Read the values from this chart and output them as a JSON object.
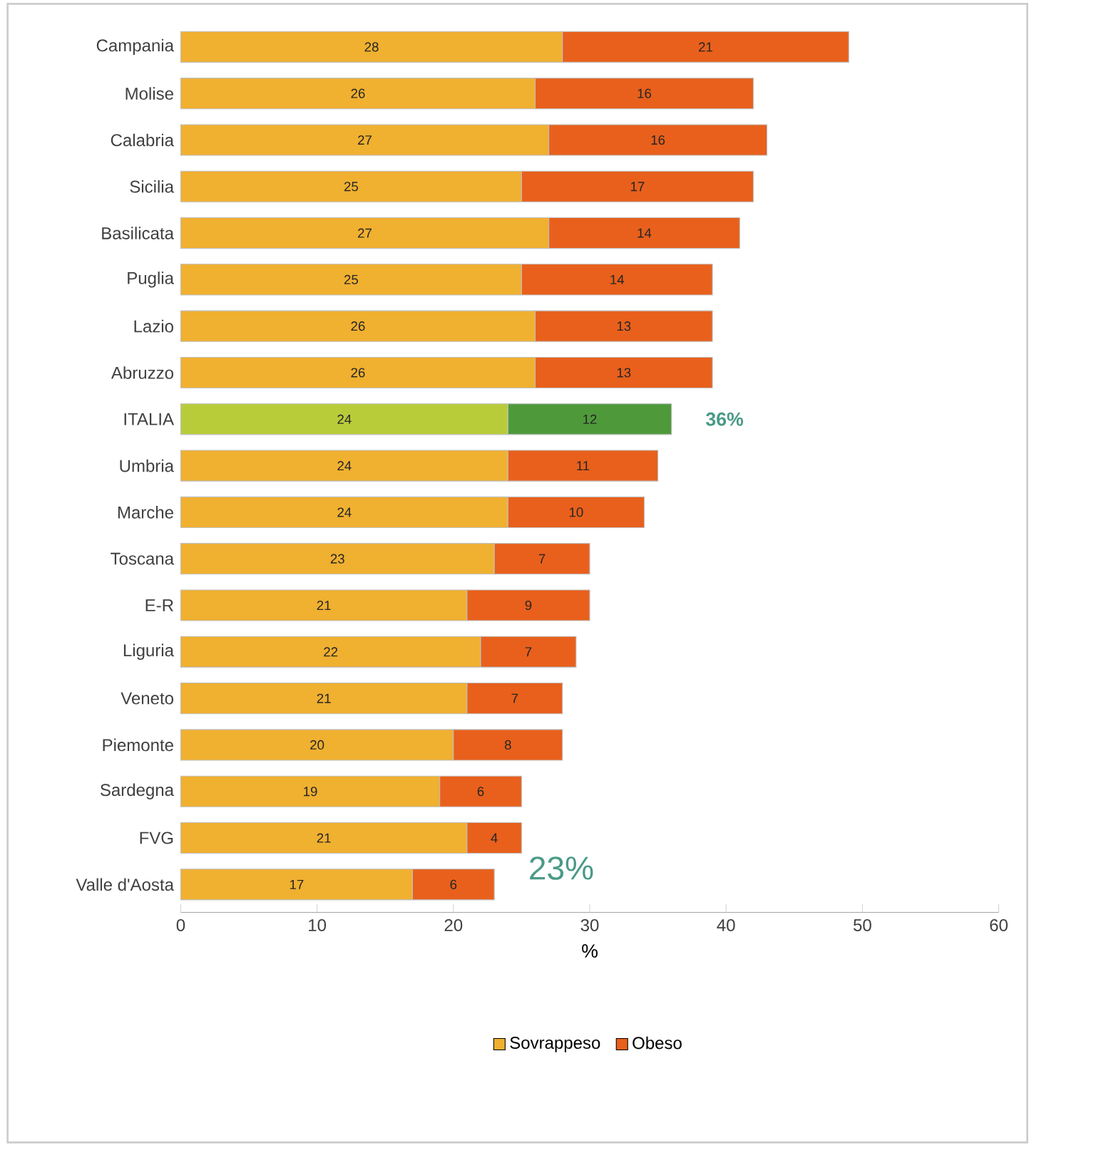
{
  "chart_data": {
    "type": "bar",
    "orientation": "horizontal",
    "stacked": true,
    "categories": [
      "Campania",
      "Molise",
      "Calabria",
      "Sicilia",
      "Basilicata",
      "Puglia",
      "Lazio",
      "Abruzzo",
      "ITALIA",
      "Umbria",
      "Marche",
      "Toscana",
      "E-R",
      "Liguria",
      "Veneto",
      "Piemonte",
      "Sardegna",
      "FVG",
      "Valle d'Aosta"
    ],
    "series": [
      {
        "name": "Sovrappeso",
        "color": "#f0b030",
        "values": [
          28,
          26,
          27,
          25,
          27,
          25,
          26,
          26,
          24,
          24,
          24,
          23,
          21,
          22,
          21,
          20,
          19,
          21,
          17
        ],
        "colors": [
          "#f0b030",
          "#f0b030",
          "#f0b030",
          "#f0b030",
          "#f0b030",
          "#f0b030",
          "#f0b030",
          "#f0b030",
          "#b8cc3a",
          "#f0b030",
          "#f0b030",
          "#f0b030",
          "#f0b030",
          "#f0b030",
          "#f0b030",
          "#f0b030",
          "#f0b030",
          "#f0b030",
          "#f0b030"
        ]
      },
      {
        "name": "Obeso",
        "color": "#e8601c",
        "values": [
          21,
          16,
          16,
          17,
          14,
          14,
          13,
          13,
          12,
          11,
          10,
          7,
          9,
          7,
          7,
          8,
          6,
          4,
          6
        ],
        "colors": [
          "#e8601c",
          "#e8601c",
          "#e8601c",
          "#e8601c",
          "#e8601c",
          "#e8601c",
          "#e8601c",
          "#e8601c",
          "#4e9a3a",
          "#e8601c",
          "#e8601c",
          "#e8601c",
          "#e8601c",
          "#e8601c",
          "#e8601c",
          "#e8601c",
          "#e8601c",
          "#e8601c",
          "#e8601c"
        ]
      }
    ],
    "xlabel": "%",
    "xlim": [
      0,
      60
    ],
    "xticks": [
      0,
      10,
      20,
      30,
      40,
      50,
      60
    ],
    "data_labels": true,
    "legend": "bottom",
    "grid": false,
    "annotations": [
      {
        "text": "36%",
        "x": 36,
        "y": "ITALIA"
      },
      {
        "text": "23%",
        "x": 23,
        "y": "Valle d'Aosta"
      }
    ]
  }
}
